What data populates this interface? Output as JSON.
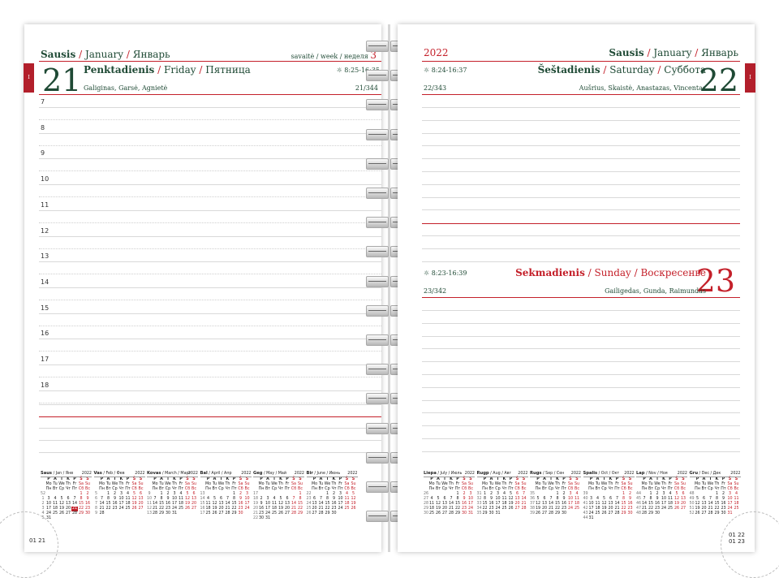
{
  "left": {
    "month_lt": "Sausis",
    "month_en": "January",
    "month_ru": "Январь",
    "week_label": "savaitė / week / неделя",
    "week_num": "3",
    "tab": "I",
    "day_num": "21",
    "day_lt": "Penktadienis",
    "day_en": "Friday",
    "day_ru": "Пятница",
    "sun": "☼ 8:25-16:35",
    "names": "Galiginas, Garsė, Agnietė",
    "daycount": "21/344",
    "hours": [
      "7",
      "8",
      "9",
      "10",
      "11",
      "12",
      "13",
      "14",
      "15",
      "16",
      "17",
      "18"
    ],
    "page_code": "01 21"
  },
  "right": {
    "year": "2022",
    "month_lt": "Sausis",
    "month_en": "January",
    "month_ru": "Январь",
    "tab": "I",
    "day1": {
      "num": "22",
      "name_lt": "Šeštadienis",
      "name_en": "Saturday",
      "name_ru": "Суббота",
      "sun": "☼ 8:24-16:37",
      "names": "Aušrius, Skaistė, Anastazas, Vincentas",
      "daycount": "22/343"
    },
    "day2": {
      "num": "23",
      "name_lt": "Sekmadienis",
      "name_en": "Sunday",
      "name_ru": "Воскресенье",
      "sun": "☼ 8:23-16:39",
      "names": "Gailigedas, Gunda, Raimundas",
      "daycount": "23/342"
    },
    "page_code_1": "01 22",
    "page_code_2": "01 23"
  },
  "mini_calendars_left": [
    {
      "title": "Saus",
      "sub": "/ Jan / Янв",
      "year": "2022",
      "hl": "21"
    },
    {
      "title": "Vas",
      "sub": "/ Feb / Фев",
      "year": "2022",
      "hl": ""
    },
    {
      "title": "Kovas",
      "sub": "/ March / Март",
      "year": "2022",
      "hl": ""
    },
    {
      "title": "Bal",
      "sub": "/ April / Апр",
      "year": "2022",
      "hl": ""
    },
    {
      "title": "Geg",
      "sub": "/ May / Май",
      "year": "2022",
      "hl": ""
    },
    {
      "title": "Bir",
      "sub": "/ June / Июнь",
      "year": "2022",
      "hl": ""
    }
  ],
  "mini_calendars_right": [
    {
      "title": "Liepa",
      "sub": "/ July / Июль",
      "year": "2022",
      "hl": ""
    },
    {
      "title": "Rugp",
      "sub": "/ Aug / Авг",
      "year": "2022",
      "hl": ""
    },
    {
      "title": "Rugs",
      "sub": "/ Sep / Сен",
      "year": "2022",
      "hl": ""
    },
    {
      "title": "Spalis",
      "sub": "/ Oct / Окт",
      "year": "2022",
      "hl": ""
    },
    {
      "title": "Lap",
      "sub": "/ Nov / Ноя",
      "year": "2022",
      "hl": ""
    },
    {
      "title": "Gru",
      "sub": "/ Dec / Дек",
      "year": "2022",
      "hl": ""
    }
  ],
  "mini_day_heads": [
    "P",
    "A",
    "T",
    "K",
    "P",
    "Š",
    "S"
  ],
  "mini_day_heads_en": [
    "Mo",
    "Tu",
    "We",
    "Th",
    "Fr",
    "Sa",
    "Su"
  ],
  "mini_day_heads_ru": [
    "Пн",
    "Вт",
    "Ср",
    "Чт",
    "Пт",
    "Сб",
    "Вс"
  ],
  "mini_weeks": {
    "Jan": [
      [
        "52",
        "",
        "",
        "",
        "",
        "",
        "1",
        "2"
      ],
      [
        "1",
        "3",
        "4",
        "5",
        "6",
        "7",
        "8",
        "9"
      ],
      [
        "2",
        "10",
        "11",
        "12",
        "13",
        "14",
        "15",
        "16"
      ],
      [
        "3",
        "17",
        "18",
        "19",
        "20",
        "21",
        "22",
        "23"
      ],
      [
        "4",
        "24",
        "25",
        "26",
        "27",
        "28",
        "29",
        "30"
      ],
      [
        "5",
        "31",
        "",
        "",
        "",
        "",
        "",
        ""
      ]
    ],
    "Feb": [
      [
        "5",
        "",
        "1",
        "2",
        "3",
        "4",
        "5",
        "6"
      ],
      [
        "6",
        "7",
        "8",
        "9",
        "10",
        "11",
        "12",
        "13"
      ],
      [
        "7",
        "14",
        "15",
        "16",
        "17",
        "18",
        "19",
        "20"
      ],
      [
        "8",
        "21",
        "22",
        "23",
        "24",
        "25",
        "26",
        "27"
      ],
      [
        "9",
        "28",
        "",
        "",
        "",
        "",
        "",
        ""
      ]
    ],
    "Mar": [
      [
        "9",
        "",
        "1",
        "2",
        "3",
        "4",
        "5",
        "6"
      ],
      [
        "10",
        "7",
        "8",
        "9",
        "10",
        "11",
        "12",
        "13"
      ],
      [
        "11",
        "14",
        "15",
        "16",
        "17",
        "18",
        "19",
        "20"
      ],
      [
        "12",
        "21",
        "22",
        "23",
        "24",
        "25",
        "26",
        "27"
      ],
      [
        "13",
        "28",
        "29",
        "30",
        "31",
        "",
        "",
        ""
      ]
    ],
    "Apr": [
      [
        "13",
        "",
        "",
        "",
        "",
        "1",
        "2",
        "3"
      ],
      [
        "14",
        "4",
        "5",
        "6",
        "7",
        "8",
        "9",
        "10"
      ],
      [
        "15",
        "11",
        "12",
        "13",
        "14",
        "15",
        "16",
        "17"
      ],
      [
        "16",
        "18",
        "19",
        "20",
        "21",
        "22",
        "23",
        "24"
      ],
      [
        "17",
        "25",
        "26",
        "27",
        "28",
        "29",
        "30",
        ""
      ]
    ],
    "May": [
      [
        "17",
        "",
        "",
        "",
        "",
        "",
        "",
        "1"
      ],
      [
        "18",
        "2",
        "3",
        "4",
        "5",
        "6",
        "7",
        "8"
      ],
      [
        "19",
        "9",
        "10",
        "11",
        "12",
        "13",
        "14",
        "15"
      ],
      [
        "20",
        "16",
        "17",
        "18",
        "19",
        "20",
        "21",
        "22"
      ],
      [
        "21",
        "23",
        "24",
        "25",
        "26",
        "27",
        "28",
        "29"
      ],
      [
        "22",
        "30",
        "31",
        "",
        "",
        "",
        "",
        ""
      ]
    ],
    "Jun": [
      [
        "22",
        "",
        "",
        "1",
        "2",
        "3",
        "4",
        "5"
      ],
      [
        "23",
        "6",
        "7",
        "8",
        "9",
        "10",
        "11",
        "12"
      ],
      [
        "24",
        "13",
        "14",
        "15",
        "16",
        "17",
        "18",
        "19"
      ],
      [
        "25",
        "20",
        "21",
        "22",
        "23",
        "24",
        "25",
        "26"
      ],
      [
        "26",
        "27",
        "28",
        "29",
        "30",
        "",
        "",
        ""
      ]
    ],
    "Jul": [
      [
        "26",
        "",
        "",
        "",
        "",
        "1",
        "2",
        "3"
      ],
      [
        "27",
        "4",
        "5",
        "6",
        "7",
        "8",
        "9",
        "10"
      ],
      [
        "28",
        "11",
        "12",
        "13",
        "14",
        "15",
        "16",
        "17"
      ],
      [
        "29",
        "18",
        "19",
        "20",
        "21",
        "22",
        "23",
        "24"
      ],
      [
        "30",
        "25",
        "26",
        "27",
        "28",
        "29",
        "30",
        "31"
      ]
    ],
    "Aug": [
      [
        "31",
        "1",
        "2",
        "3",
        "4",
        "5",
        "6",
        "7"
      ],
      [
        "32",
        "8",
        "9",
        "10",
        "11",
        "12",
        "13",
        "14"
      ],
      [
        "33",
        "15",
        "16",
        "17",
        "18",
        "19",
        "20",
        "21"
      ],
      [
        "34",
        "22",
        "23",
        "24",
        "25",
        "26",
        "27",
        "28"
      ],
      [
        "35",
        "29",
        "30",
        "31",
        "",
        "",
        "",
        ""
      ]
    ],
    "Sep": [
      [
        "35",
        "",
        "",
        "",
        "1",
        "2",
        "3",
        "4"
      ],
      [
        "36",
        "5",
        "6",
        "7",
        "8",
        "9",
        "10",
        "11"
      ],
      [
        "37",
        "12",
        "13",
        "14",
        "15",
        "16",
        "17",
        "18"
      ],
      [
        "38",
        "19",
        "20",
        "21",
        "22",
        "23",
        "24",
        "25"
      ],
      [
        "39",
        "26",
        "27",
        "28",
        "29",
        "30",
        "",
        ""
      ]
    ],
    "Oct": [
      [
        "39",
        "",
        "",
        "",
        "",
        "",
        "1",
        "2"
      ],
      [
        "40",
        "3",
        "4",
        "5",
        "6",
        "7",
        "8",
        "9"
      ],
      [
        "41",
        "10",
        "11",
        "12",
        "13",
        "14",
        "15",
        "16"
      ],
      [
        "42",
        "17",
        "18",
        "19",
        "20",
        "21",
        "22",
        "23"
      ],
      [
        "43",
        "24",
        "25",
        "26",
        "27",
        "28",
        "29",
        "30"
      ],
      [
        "44",
        "31",
        "",
        "",
        "",
        "",
        "",
        ""
      ]
    ],
    "Nov": [
      [
        "44",
        "",
        "1",
        "2",
        "3",
        "4",
        "5",
        "6"
      ],
      [
        "45",
        "7",
        "8",
        "9",
        "10",
        "11",
        "12",
        "13"
      ],
      [
        "46",
        "14",
        "15",
        "16",
        "17",
        "18",
        "19",
        "20"
      ],
      [
        "47",
        "21",
        "22",
        "23",
        "24",
        "25",
        "26",
        "27"
      ],
      [
        "48",
        "28",
        "29",
        "30",
        "",
        "",
        "",
        ""
      ]
    ],
    "Dec": [
      [
        "48",
        "",
        "",
        "",
        "1",
        "2",
        "3",
        "4"
      ],
      [
        "49",
        "5",
        "6",
        "7",
        "8",
        "9",
        "10",
        "11"
      ],
      [
        "50",
        "12",
        "13",
        "14",
        "15",
        "16",
        "17",
        "18"
      ],
      [
        "51",
        "19",
        "20",
        "21",
        "22",
        "23",
        "24",
        "25"
      ],
      [
        "52",
        "26",
        "27",
        "28",
        "29",
        "30",
        "31",
        ""
      ]
    ]
  },
  "colors": {
    "accent_red": "#c4202a",
    "dark_green": "#1f4a35",
    "tab": "#b21f2b"
  }
}
